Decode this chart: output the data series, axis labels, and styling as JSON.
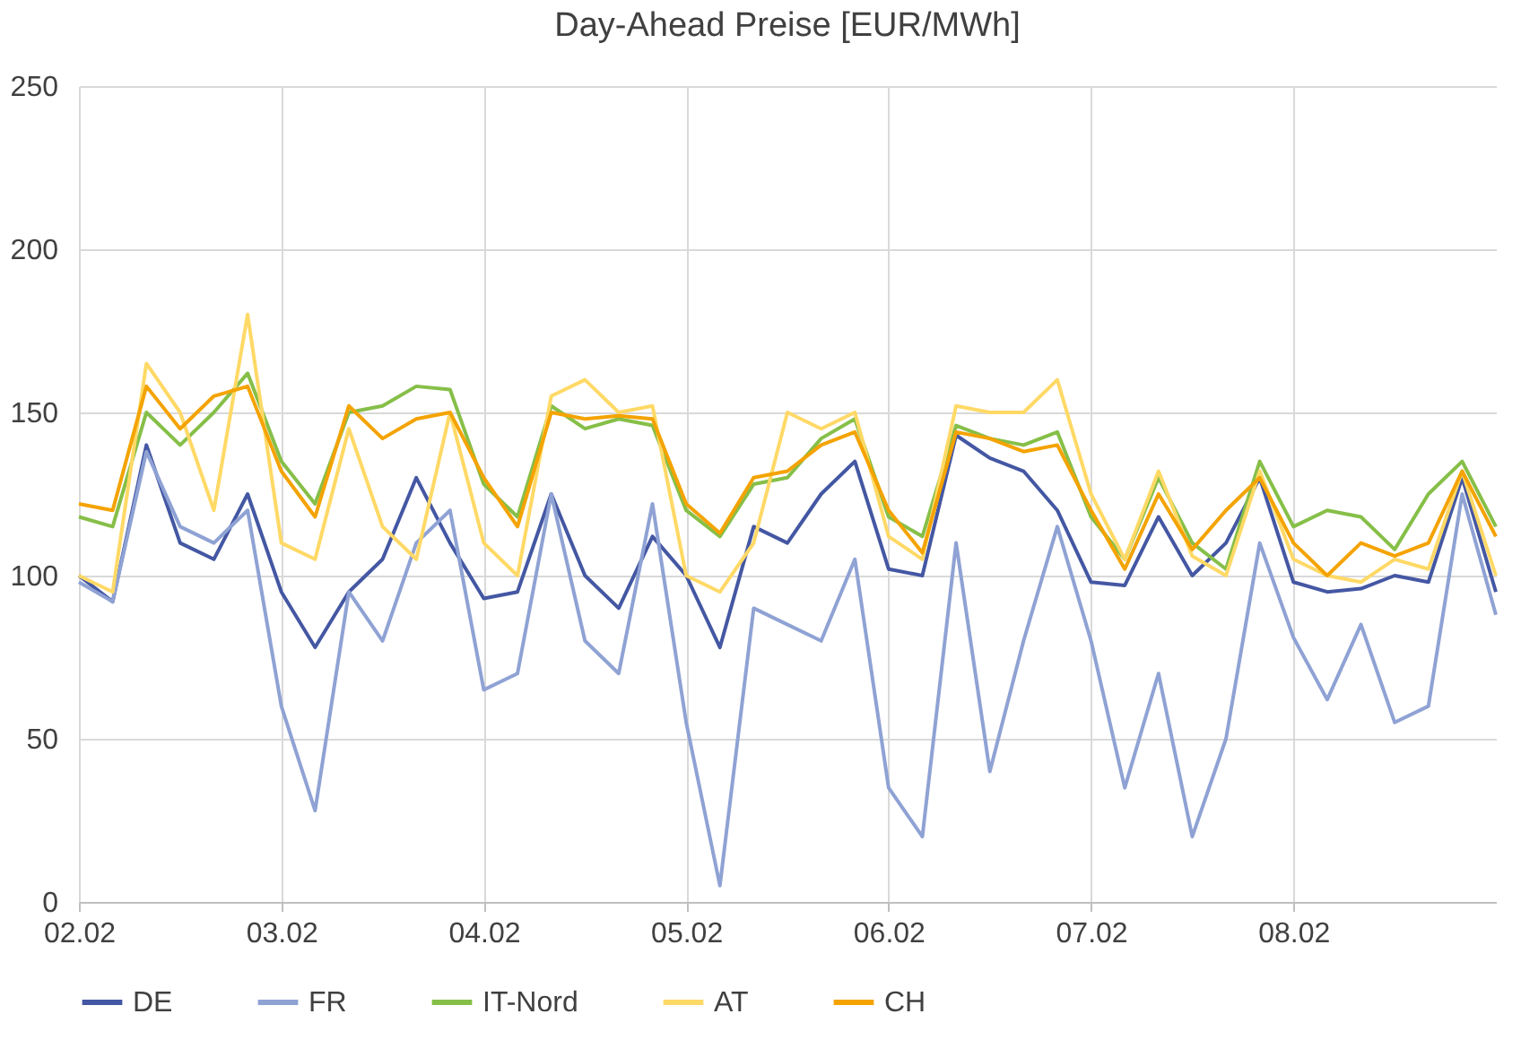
{
  "chart_data": {
    "type": "line",
    "title": "Day-Ahead Preise [EUR/MWh]",
    "categories": [
      "02.02",
      null,
      null,
      null,
      null,
      null,
      "03.02",
      null,
      null,
      null,
      null,
      null,
      "04.02",
      null,
      null,
      null,
      null,
      null,
      "05.02",
      null,
      null,
      null,
      null,
      null,
      "06.02",
      null,
      null,
      null,
      null,
      null,
      "07.02",
      null,
      null,
      null,
      null,
      null,
      "08.02",
      null,
      null,
      null,
      null,
      null,
      null
    ],
    "ylim": [
      0,
      250
    ],
    "yticks": [
      0,
      50,
      100,
      150,
      200,
      250
    ],
    "grid": true,
    "legend": "bottom",
    "marker": "none",
    "line_style": "solid",
    "series": [
      {
        "name": "DE",
        "color": "#4457a3",
        "values": [
          100,
          92,
          140,
          110,
          105,
          125,
          95,
          78,
          95,
          105,
          130,
          110,
          93,
          95,
          125,
          100,
          90,
          112,
          100,
          78,
          115,
          110,
          125,
          135,
          102,
          100,
          143,
          136,
          132,
          120,
          98,
          97,
          118,
          100,
          110,
          130,
          98,
          95,
          96,
          100,
          98,
          130,
          95
        ]
      },
      {
        "name": "FR",
        "color": "#8fa2d4",
        "values": [
          98,
          92,
          138,
          115,
          110,
          120,
          60,
          28,
          95,
          80,
          110,
          120,
          65,
          70,
          125,
          80,
          70,
          122,
          55,
          5,
          90,
          85,
          80,
          105,
          35,
          20,
          110,
          40,
          80,
          115,
          80,
          35,
          70,
          20,
          50,
          110,
          81,
          62,
          85,
          55,
          60,
          125,
          88
        ]
      },
      {
        "name": "IT-Nord",
        "color": "#86bf48",
        "values": [
          118,
          115,
          150,
          140,
          150,
          162,
          135,
          122,
          150,
          152,
          158,
          157,
          128,
          118,
          152,
          145,
          148,
          146,
          120,
          112,
          128,
          130,
          142,
          148,
          118,
          112,
          146,
          142,
          140,
          144,
          118,
          105,
          130,
          110,
          102,
          135,
          115,
          120,
          118,
          108,
          125,
          135,
          115
        ]
      },
      {
        "name": "AT",
        "color": "#ffd966",
        "values": [
          100,
          95,
          165,
          150,
          120,
          180,
          110,
          105,
          145,
          115,
          105,
          150,
          110,
          100,
          155,
          160,
          150,
          152,
          100,
          95,
          110,
          150,
          145,
          150,
          112,
          105,
          152,
          150,
          150,
          160,
          125,
          105,
          132,
          106,
          100,
          132,
          105,
          100,
          98,
          105,
          102,
          132,
          100
        ]
      },
      {
        "name": "CH",
        "color": "#f4a300",
        "values": [
          122,
          120,
          158,
          145,
          155,
          158,
          132,
          118,
          152,
          142,
          148,
          150,
          130,
          115,
          150,
          148,
          149,
          148,
          122,
          113,
          130,
          132,
          140,
          144,
          120,
          107,
          144,
          142,
          138,
          140,
          120,
          102,
          125,
          108,
          120,
          130,
          110,
          100,
          110,
          106,
          110,
          132,
          112
        ]
      }
    ]
  }
}
